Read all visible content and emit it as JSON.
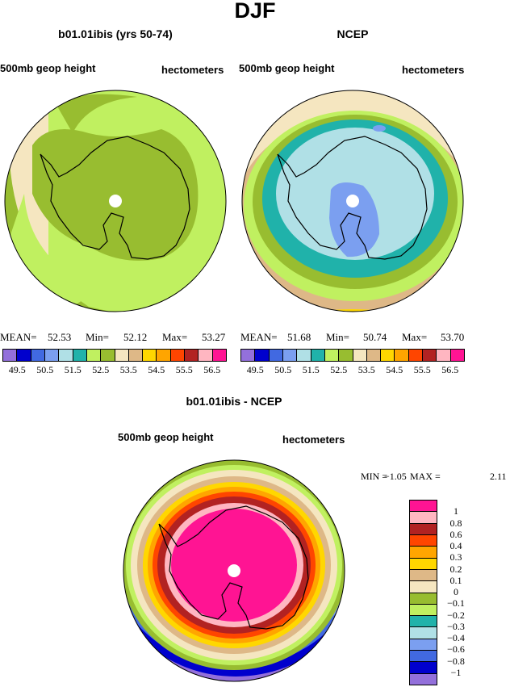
{
  "title": "DJF",
  "palette": [
    "#9370db",
    "#0000cd",
    "#4169e1",
    "#7b9ff0",
    "#b0e0e6",
    "#20b2aa",
    "#c0f060",
    "#98bd30",
    "#f5e6c0",
    "#deb887",
    "#ffd700",
    "#ffa500",
    "#ff4500",
    "#b22222",
    "#ffb6c1",
    "#ff1493"
  ],
  "panels": [
    {
      "title": "b01.01ibis (yrs 50-74)",
      "left_label": "500mb geop height",
      "right_label": "hectometers",
      "stats": {
        "mean_label": "MEAN=",
        "mean": "52.53",
        "min_label": "Min=",
        "min": "52.12",
        "max_label": "Max=",
        "max": "53.27"
      },
      "fields": "lightgreen with olive over continent"
    },
    {
      "title": "NCEP",
      "left_label": "500mb geop height",
      "right_label": "hectometers",
      "stats": {
        "mean_label": "MEAN=",
        "mean": "51.68",
        "min_label": "Min=",
        "min": "50.74",
        "max_label": "Max=",
        "max": "53.70"
      }
    }
  ],
  "colorbar_labels": [
    "49.5",
    "50.5",
    "51.5",
    "52.5",
    "53.5",
    "54.5",
    "55.5",
    "56.5"
  ],
  "diff": {
    "title": "b01.01ibis - NCEP",
    "left_label": "500mb geop height",
    "right_label": "hectometers",
    "min_label": "MIN =",
    "min": "−1.05",
    "max_label": "MAX =",
    "max": "2.11",
    "colorbar_labels": [
      "1",
      "0.8",
      "0.6",
      "0.4",
      "0.3",
      "0.2",
      "0.1",
      "0",
      "−0.1",
      "−0.2",
      "−0.3",
      "−0.4",
      "−0.6",
      "−0.8",
      "−1"
    ]
  }
}
